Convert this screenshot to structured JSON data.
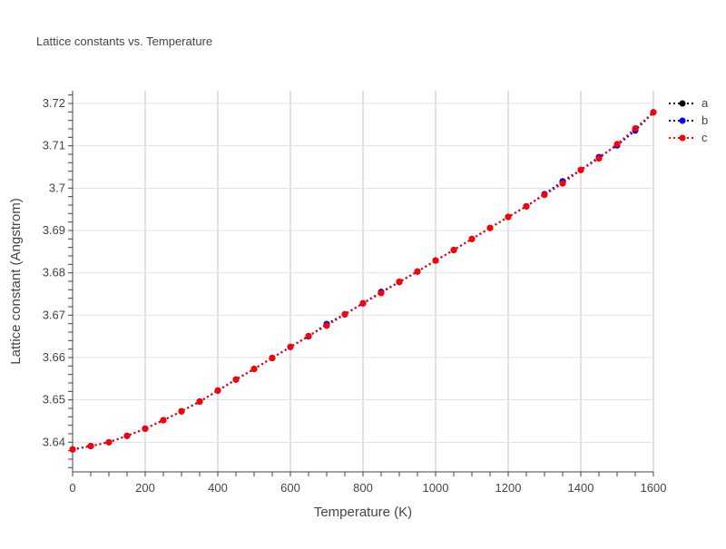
{
  "chart_data": {
    "type": "line",
    "title": "Lattice constants vs. Temperature",
    "xlabel": "Temperature (K)",
    "ylabel": "Lattice constant (Angstrom)",
    "xlim": [
      0,
      1600
    ],
    "ylim": [
      3.633,
      3.723
    ],
    "x_ticks": [
      "0",
      "200",
      "400",
      "600",
      "800",
      "1000",
      "1200",
      "1400",
      "1600"
    ],
    "x_tick_values": [
      0,
      200,
      400,
      600,
      800,
      1000,
      1200,
      1400,
      1600
    ],
    "y_ticks": [
      "3.64",
      "3.65",
      "3.66",
      "3.67",
      "3.68",
      "3.69",
      "3.7",
      "3.71",
      "3.72"
    ],
    "y_tick_values": [
      3.64,
      3.65,
      3.66,
      3.67,
      3.68,
      3.69,
      3.7,
      3.71,
      3.72
    ],
    "grid": true,
    "legend_position": "top-right",
    "x": [
      0,
      50,
      100,
      150,
      200,
      250,
      300,
      350,
      400,
      450,
      500,
      550,
      600,
      650,
      700,
      750,
      800,
      850,
      900,
      950,
      1000,
      1050,
      1100,
      1150,
      1200,
      1250,
      1300,
      1350,
      1400,
      1450,
      1500,
      1550,
      1600
    ],
    "series": [
      {
        "name": "a",
        "color": "#000000",
        "style": "dotted",
        "marker": "circle",
        "values": [
          3.6383,
          3.6391,
          3.64,
          3.6415,
          3.6432,
          3.6452,
          3.6473,
          3.6496,
          3.6522,
          3.6548,
          3.6573,
          3.6599,
          3.6625,
          3.665,
          3.6679,
          3.6702,
          3.6728,
          3.6753,
          3.6779,
          3.6803,
          3.6829,
          3.6854,
          3.688,
          3.6906,
          3.6932,
          3.6957,
          3.6985,
          3.7016,
          3.7043,
          3.7073,
          3.7101,
          3.7138,
          3.7179
        ]
      },
      {
        "name": "b",
        "color": "#0000ff",
        "style": "dotted",
        "marker": "circle",
        "values": [
          3.6383,
          3.6391,
          3.64,
          3.6415,
          3.6432,
          3.6452,
          3.6473,
          3.6496,
          3.6522,
          3.6548,
          3.6573,
          3.6599,
          3.6625,
          3.665,
          3.6679,
          3.6702,
          3.6728,
          3.6755,
          3.6778,
          3.6803,
          3.6829,
          3.6854,
          3.688,
          3.6906,
          3.6932,
          3.6957,
          3.6986,
          3.7016,
          3.7043,
          3.7073,
          3.7101,
          3.7136,
          3.7179
        ]
      },
      {
        "name": "c",
        "color": "#ff0000",
        "style": "dotted",
        "marker": "circle",
        "values": [
          3.6383,
          3.6391,
          3.64,
          3.6415,
          3.6432,
          3.6452,
          3.6473,
          3.6496,
          3.6522,
          3.6548,
          3.6573,
          3.6599,
          3.6625,
          3.6651,
          3.6675,
          3.6702,
          3.6728,
          3.6752,
          3.6779,
          3.6803,
          3.6829,
          3.6854,
          3.688,
          3.6906,
          3.6932,
          3.6957,
          3.6984,
          3.7011,
          3.7043,
          3.707,
          3.7104,
          3.7141,
          3.7179
        ]
      }
    ]
  }
}
